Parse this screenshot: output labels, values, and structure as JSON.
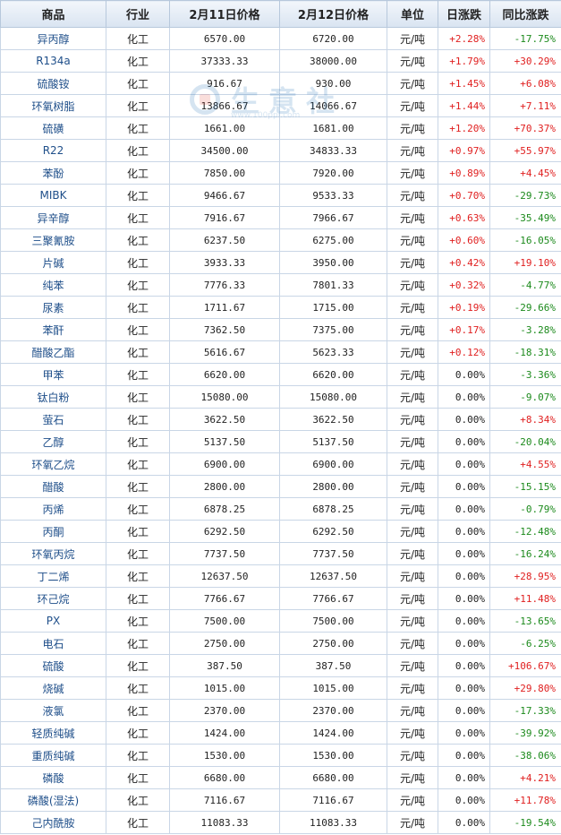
{
  "headers": [
    "商品",
    "行业",
    "2月11日价格",
    "2月12日价格",
    "单位",
    "日涨跌",
    "同比涨跌"
  ],
  "watermark": {
    "text": "生意社",
    "url": "www.100ppi.com"
  },
  "rows": [
    {
      "name": "异丙醇",
      "industry": "化工",
      "p1": "6570.00",
      "p2": "6720.00",
      "unit": "元/吨",
      "day": "+2.28%",
      "yoy": "-17.75%"
    },
    {
      "name": "R134a",
      "industry": "化工",
      "p1": "37333.33",
      "p2": "38000.00",
      "unit": "元/吨",
      "day": "+1.79%",
      "yoy": "+30.29%"
    },
    {
      "name": "硫酸铵",
      "industry": "化工",
      "p1": "916.67",
      "p2": "930.00",
      "unit": "元/吨",
      "day": "+1.45%",
      "yoy": "+6.08%"
    },
    {
      "name": "环氧树脂",
      "industry": "化工",
      "p1": "13866.67",
      "p2": "14066.67",
      "unit": "元/吨",
      "day": "+1.44%",
      "yoy": "+7.11%"
    },
    {
      "name": "硫磺",
      "industry": "化工",
      "p1": "1661.00",
      "p2": "1681.00",
      "unit": "元/吨",
      "day": "+1.20%",
      "yoy": "+70.37%"
    },
    {
      "name": "R22",
      "industry": "化工",
      "p1": "34500.00",
      "p2": "34833.33",
      "unit": "元/吨",
      "day": "+0.97%",
      "yoy": "+55.97%"
    },
    {
      "name": "苯酚",
      "industry": "化工",
      "p1": "7850.00",
      "p2": "7920.00",
      "unit": "元/吨",
      "day": "+0.89%",
      "yoy": "+4.45%"
    },
    {
      "name": "MIBK",
      "industry": "化工",
      "p1": "9466.67",
      "p2": "9533.33",
      "unit": "元/吨",
      "day": "+0.70%",
      "yoy": "-29.73%"
    },
    {
      "name": "异辛醇",
      "industry": "化工",
      "p1": "7916.67",
      "p2": "7966.67",
      "unit": "元/吨",
      "day": "+0.63%",
      "yoy": "-35.49%"
    },
    {
      "name": "三聚氰胺",
      "industry": "化工",
      "p1": "6237.50",
      "p2": "6275.00",
      "unit": "元/吨",
      "day": "+0.60%",
      "yoy": "-16.05%"
    },
    {
      "name": "片碱",
      "industry": "化工",
      "p1": "3933.33",
      "p2": "3950.00",
      "unit": "元/吨",
      "day": "+0.42%",
      "yoy": "+19.10%"
    },
    {
      "name": "纯苯",
      "industry": "化工",
      "p1": "7776.33",
      "p2": "7801.33",
      "unit": "元/吨",
      "day": "+0.32%",
      "yoy": "-4.77%"
    },
    {
      "name": "尿素",
      "industry": "化工",
      "p1": "1711.67",
      "p2": "1715.00",
      "unit": "元/吨",
      "day": "+0.19%",
      "yoy": "-29.66%"
    },
    {
      "name": "苯酐",
      "industry": "化工",
      "p1": "7362.50",
      "p2": "7375.00",
      "unit": "元/吨",
      "day": "+0.17%",
      "yoy": "-3.28%"
    },
    {
      "name": "醋酸乙酯",
      "industry": "化工",
      "p1": "5616.67",
      "p2": "5623.33",
      "unit": "元/吨",
      "day": "+0.12%",
      "yoy": "-18.31%"
    },
    {
      "name": "甲苯",
      "industry": "化工",
      "p1": "6620.00",
      "p2": "6620.00",
      "unit": "元/吨",
      "day": "0.00%",
      "yoy": "-3.36%"
    },
    {
      "name": "钛白粉",
      "industry": "化工",
      "p1": "15080.00",
      "p2": "15080.00",
      "unit": "元/吨",
      "day": "0.00%",
      "yoy": "-9.07%"
    },
    {
      "name": "萤石",
      "industry": "化工",
      "p1": "3622.50",
      "p2": "3622.50",
      "unit": "元/吨",
      "day": "0.00%",
      "yoy": "+8.34%"
    },
    {
      "name": "乙醇",
      "industry": "化工",
      "p1": "5137.50",
      "p2": "5137.50",
      "unit": "元/吨",
      "day": "0.00%",
      "yoy": "-20.04%"
    },
    {
      "name": "环氧乙烷",
      "industry": "化工",
      "p1": "6900.00",
      "p2": "6900.00",
      "unit": "元/吨",
      "day": "0.00%",
      "yoy": "+4.55%"
    },
    {
      "name": "醋酸",
      "industry": "化工",
      "p1": "2800.00",
      "p2": "2800.00",
      "unit": "元/吨",
      "day": "0.00%",
      "yoy": "-15.15%"
    },
    {
      "name": "丙烯",
      "industry": "化工",
      "p1": "6878.25",
      "p2": "6878.25",
      "unit": "元/吨",
      "day": "0.00%",
      "yoy": "-0.79%"
    },
    {
      "name": "丙酮",
      "industry": "化工",
      "p1": "6292.50",
      "p2": "6292.50",
      "unit": "元/吨",
      "day": "0.00%",
      "yoy": "-12.48%"
    },
    {
      "name": "环氧丙烷",
      "industry": "化工",
      "p1": "7737.50",
      "p2": "7737.50",
      "unit": "元/吨",
      "day": "0.00%",
      "yoy": "-16.24%"
    },
    {
      "name": "丁二烯",
      "industry": "化工",
      "p1": "12637.50",
      "p2": "12637.50",
      "unit": "元/吨",
      "day": "0.00%",
      "yoy": "+28.95%"
    },
    {
      "name": "环己烷",
      "industry": "化工",
      "p1": "7766.67",
      "p2": "7766.67",
      "unit": "元/吨",
      "day": "0.00%",
      "yoy": "+11.48%"
    },
    {
      "name": "PX",
      "industry": "化工",
      "p1": "7500.00",
      "p2": "7500.00",
      "unit": "元/吨",
      "day": "0.00%",
      "yoy": "-13.65%"
    },
    {
      "name": "电石",
      "industry": "化工",
      "p1": "2750.00",
      "p2": "2750.00",
      "unit": "元/吨",
      "day": "0.00%",
      "yoy": "-6.25%"
    },
    {
      "name": "硫酸",
      "industry": "化工",
      "p1": "387.50",
      "p2": "387.50",
      "unit": "元/吨",
      "day": "0.00%",
      "yoy": "+106.67%"
    },
    {
      "name": "烧碱",
      "industry": "化工",
      "p1": "1015.00",
      "p2": "1015.00",
      "unit": "元/吨",
      "day": "0.00%",
      "yoy": "+29.80%"
    },
    {
      "name": "液氯",
      "industry": "化工",
      "p1": "2370.00",
      "p2": "2370.00",
      "unit": "元/吨",
      "day": "0.00%",
      "yoy": "-17.33%"
    },
    {
      "name": "轻质纯碱",
      "industry": "化工",
      "p1": "1424.00",
      "p2": "1424.00",
      "unit": "元/吨",
      "day": "0.00%",
      "yoy": "-39.92%"
    },
    {
      "name": "重质纯碱",
      "industry": "化工",
      "p1": "1530.00",
      "p2": "1530.00",
      "unit": "元/吨",
      "day": "0.00%",
      "yoy": "-38.06%"
    },
    {
      "name": "磷酸",
      "industry": "化工",
      "p1": "6680.00",
      "p2": "6680.00",
      "unit": "元/吨",
      "day": "0.00%",
      "yoy": "+4.21%"
    },
    {
      "name": "磷酸(湿法)",
      "industry": "化工",
      "p1": "7116.67",
      "p2": "7116.67",
      "unit": "元/吨",
      "day": "0.00%",
      "yoy": "+11.78%"
    },
    {
      "name": "己内酰胺",
      "industry": "化工",
      "p1": "11083.33",
      "p2": "11083.33",
      "unit": "元/吨",
      "day": "0.00%",
      "yoy": "-19.54%"
    }
  ]
}
